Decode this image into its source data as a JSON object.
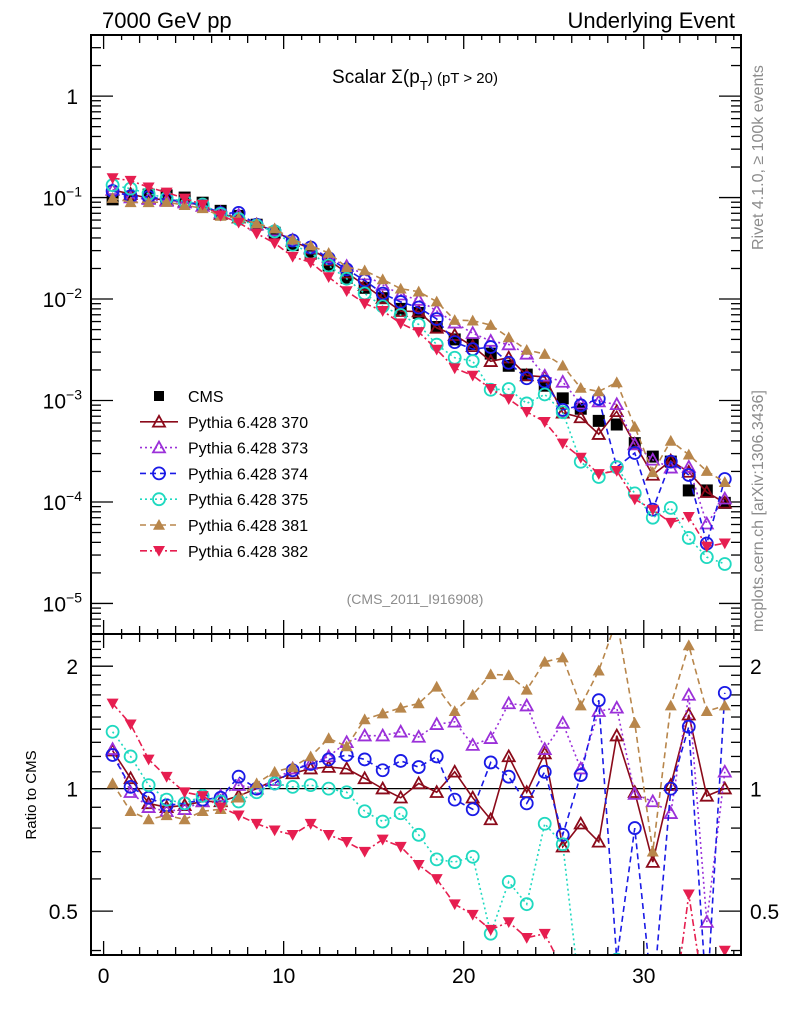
{
  "header": {
    "left": "7000 GeV pp",
    "right": "Underlying Event"
  },
  "side_labels": {
    "rivet": "Rivet 4.1.0, ≥ 100k events",
    "mcplots": "mcplots.cern.ch [arXiv:1306.3436]"
  },
  "analysis_id": "(CMS_2011_I916908)",
  "chart_data": [
    {
      "type": "scatter",
      "panel": "main",
      "title": "Scalar Σ(p_T) (pT > 20)",
      "title_parts": {
        "pre": "Scalar Σ(p",
        "sub": "T",
        "post": ") (pT > 20)"
      },
      "xlabel": "",
      "ylabel": "",
      "xlim": [
        -0.7,
        35.4
      ],
      "ylim": [
        5e-06,
        4
      ],
      "yscale": "log",
      "y_ticks": [
        {
          "label": "1",
          "value": 1
        },
        {
          "base": "10",
          "exp": "−1",
          "value": 0.1
        },
        {
          "base": "10",
          "exp": "−2",
          "value": 0.01
        },
        {
          "base": "10",
          "exp": "−3",
          "value": 0.001
        },
        {
          "base": "10",
          "exp": "−4",
          "value": 0.0001
        },
        {
          "base": "10",
          "exp": "−5",
          "value": 1e-05
        }
      ],
      "legend_position": "middle-left",
      "x": [
        0.5,
        1.5,
        2.5,
        3.5,
        4.5,
        5.5,
        6.5,
        7.5,
        8.5,
        9.5,
        10.5,
        11.5,
        12.5,
        13.5,
        14.5,
        15.5,
        16.5,
        17.5,
        18.5,
        19.5,
        20.5,
        21.5,
        22.5,
        23.5,
        24.5,
        25.5,
        26.5,
        27.5,
        28.5,
        29.5,
        30.5,
        31.5,
        32.5,
        33.5,
        34.5
      ],
      "series": [
        {
          "name": "CMS",
          "color": "#000000",
          "marker": "square-filled",
          "line": "none",
          "values": [
            0.096,
            0.102,
            0.107,
            0.105,
            0.1,
            0.089,
            0.074,
            0.066,
            0.054,
            0.045,
            0.034,
            0.028,
            0.0214,
            0.0162,
            0.0129,
            0.0102,
            0.008,
            0.0073,
            0.0053,
            0.004,
            0.0036,
            0.0029,
            0.0022,
            0.0018,
            0.0014,
            0.00105,
            0.00083,
            0.00063,
            0.00058,
            0.00038,
            0.00028,
            0.00025,
            0.00013,
            0.00013,
            9.8e-05
          ]
        },
        {
          "name": "Pythia 6.428 370",
          "color": "#8b0a1a",
          "marker": "triangle-up-open",
          "line": "solid",
          "ratio": [
            1.24,
            1.06,
            0.92,
            0.9,
            0.91,
            0.93,
            0.93,
            0.96,
            1.0,
            1.05,
            1.09,
            1.12,
            1.13,
            1.12,
            1.06,
            1.0,
            0.95,
            1.03,
            0.98,
            1.1,
            0.95,
            0.84,
            1.2,
            0.98,
            1.22,
            0.72,
            0.82,
            0.74,
            1.35,
            0.98,
            0.66,
            1.02,
            1.52,
            0.96,
            1.0
          ]
        },
        {
          "name": "Pythia 6.428 373",
          "color": "#9b30d9",
          "marker": "triangle-up-open",
          "line": "dotted",
          "ratio": [
            1.25,
            0.98,
            0.9,
            0.88,
            0.89,
            0.93,
            0.96,
            1.02,
            1.0,
            1.05,
            1.12,
            1.15,
            1.2,
            1.3,
            1.35,
            1.35,
            1.38,
            1.34,
            1.44,
            1.46,
            1.28,
            1.33,
            1.62,
            1.6,
            1.25,
            1.45,
            1.12,
            1.55,
            1.58,
            0.97,
            0.93,
            0.87,
            1.7,
            0.47,
            1.1
          ]
        },
        {
          "name": "Pythia 6.428 374",
          "color": "#1a1ae6",
          "marker": "circle-open",
          "line": "dashed",
          "ratio": [
            1.21,
            1.01,
            0.95,
            0.91,
            0.92,
            0.94,
            0.95,
            1.07,
            1.0,
            1.03,
            1.11,
            1.15,
            1.18,
            1.21,
            1.18,
            1.11,
            1.17,
            1.13,
            1.2,
            0.94,
            0.89,
            1.16,
            1.07,
            0.92,
            1.1,
            0.77,
            1.08,
            1.65,
            0.38,
            0.8,
            0.3,
            1.0,
            1.42,
            0.3,
            1.72
          ]
        },
        {
          "name": "Pythia 6.428 375",
          "color": "#1fd9c0",
          "marker": "circle-open",
          "line": "dotted",
          "ratio": [
            1.38,
            1.2,
            1.02,
            0.94,
            0.92,
            0.96,
            0.93,
            0.93,
            0.98,
            1.03,
            1.01,
            1.02,
            1.0,
            0.98,
            0.88,
            0.83,
            0.87,
            0.77,
            0.67,
            0.66,
            0.68,
            0.44,
            0.59,
            0.52,
            0.82,
            0.73,
            0.3,
            0.28,
            0.38,
            0.32,
            0.25,
            0.35,
            0.34,
            0.22,
            0.25
          ]
        },
        {
          "name": "Pythia 6.428 381",
          "color": "#b8864b",
          "marker": "triangle-up-filled",
          "line": "dashed",
          "ratio": [
            1.03,
            0.88,
            0.84,
            0.86,
            0.84,
            0.88,
            0.89,
            0.95,
            1.03,
            1.1,
            1.13,
            1.2,
            1.33,
            1.27,
            1.48,
            1.53,
            1.58,
            1.62,
            1.78,
            1.55,
            1.7,
            1.91,
            1.9,
            1.75,
            2.05,
            2.1,
            1.6,
            1.95,
            2.6,
            1.45,
            0.7,
            1.6,
            2.25,
            1.55,
            1.6
          ]
        },
        {
          "name": "Pythia 6.428 382",
          "color": "#e61e50",
          "marker": "triangle-down-filled",
          "line": "dashdot",
          "ratio": [
            1.62,
            1.44,
            1.18,
            1.07,
            0.98,
            0.96,
            0.9,
            0.86,
            0.82,
            0.79,
            0.77,
            0.82,
            0.77,
            0.74,
            0.7,
            0.75,
            0.72,
            0.65,
            0.6,
            0.52,
            0.49,
            0.45,
            0.47,
            0.43,
            0.44,
            0.36,
            0.33,
            0.3,
            0.35,
            0.28,
            0.3,
            0.25,
            0.55,
            0.28,
            0.4
          ]
        }
      ]
    },
    {
      "type": "scatter",
      "panel": "ratio",
      "ylabel": "Ratio to CMS",
      "xlim": [
        -0.7,
        35.4
      ],
      "ylim": [
        0.39,
        2.4
      ],
      "yscale": "log",
      "y_ticks": [
        {
          "label": "0.5",
          "value": 0.5
        },
        {
          "label": "1",
          "value": 1
        },
        {
          "label": "2",
          "value": 2
        }
      ],
      "x_ticks": [
        {
          "label": "0",
          "value": 0
        },
        {
          "label": "10",
          "value": 10
        },
        {
          "label": "20",
          "value": 20
        },
        {
          "label": "30",
          "value": 30
        }
      ],
      "reference_line": 1
    }
  ]
}
